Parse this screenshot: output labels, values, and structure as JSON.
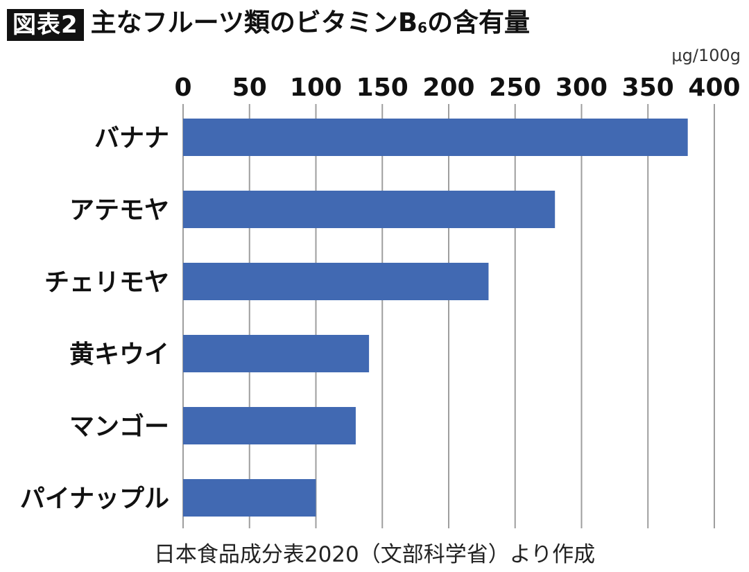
{
  "header": {
    "badge": "図表2",
    "title_main": "主なフルーツ類のビタミンB",
    "title_sub": "6",
    "title_tail": "の含有量"
  },
  "source": "日本食品成分表2020（文部科学省）より作成",
  "colors": {
    "bar": "#4169b2",
    "grid": "#9e9e9e",
    "badge_bg": "#111111"
  },
  "chart_data": {
    "type": "bar",
    "orientation": "horizontal",
    "unit_label": "μg/100g",
    "categories": [
      "バナナ",
      "アテモヤ",
      "チェリモヤ",
      "黄キウイ",
      "マンゴー",
      "パイナップル"
    ],
    "values": [
      380,
      280,
      230,
      140,
      130,
      100
    ],
    "xlim": [
      0,
      400
    ],
    "xticks": [
      0,
      50,
      100,
      150,
      200,
      250,
      300,
      350,
      400
    ],
    "grid": true
  }
}
